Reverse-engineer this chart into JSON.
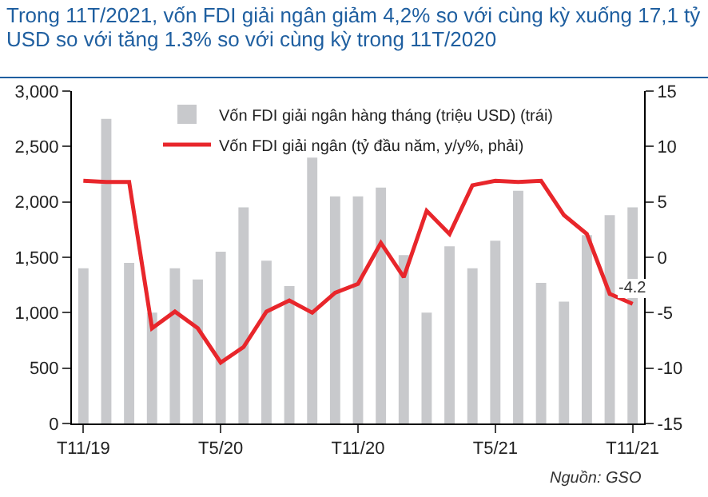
{
  "chart_data": {
    "type": "bar",
    "title": "Trong 11T/2021, vốn FDI giải ngân giảm 4,2% so với cùng kỳ xuống 17,1 tỷ USD so với tăng 1.3% so với cùng kỳ trong 11T/2020",
    "categories": [
      "T11/19",
      null,
      null,
      null,
      null,
      null,
      "T5/20",
      null,
      null,
      null,
      null,
      null,
      "T11/20",
      null,
      null,
      null,
      null,
      null,
      "T5/21",
      null,
      null,
      null,
      null,
      null,
      "T11/21"
    ],
    "series": [
      {
        "name": "Vốn FDI giải ngân hàng tháng (triệu USD) (trái)",
        "color": "#c8c9cc",
        "values": [
          1400,
          2750,
          1450,
          1000,
          1400,
          1300,
          1550,
          1950,
          1470,
          1240,
          2400,
          2050,
          2050,
          2130,
          1520,
          1000,
          1600,
          1400,
          1650,
          2100,
          1270,
          1100,
          1700,
          1880,
          1950
        ]
      },
      {
        "name": "Vốn FDI giải ngân (tỷ đầu năm, y/y%, phải)",
        "type": "line",
        "axis": "y2",
        "color": "#e8262b",
        "values": [
          6.9,
          6.8,
          6.8,
          -6.4,
          -4.9,
          -6.4,
          -9.5,
          -8.1,
          -4.9,
          -3.9,
          -5.0,
          -3.2,
          -2.4,
          1.3,
          -1.8,
          4.2,
          2.1,
          6.5,
          6.9,
          6.8,
          6.9,
          3.8,
          2.1,
          -3.3,
          -4.2
        ]
      }
    ],
    "ylim": [
      0,
      3000
    ],
    "yticks": [
      0,
      500,
      {
        "value": 1000,
        "label": "1,000"
      },
      {
        "value": 1500,
        "label": "1,500"
      },
      {
        "value": 2000,
        "label": "2,000"
      },
      {
        "value": 2500,
        "label": "2,500"
      },
      {
        "value": 3000,
        "label": "3,000"
      }
    ],
    "y2lim": [
      -15,
      15
    ],
    "y2ticks": [
      -15,
      -10,
      -5,
      0,
      5,
      10,
      15
    ],
    "grid": false,
    "legend": "top",
    "marker": "none",
    "line_style": "solid",
    "annotations": [
      {
        "text": "-4.2",
        "x": "T11/21",
        "y": 1080
      },
      "Nguồn: GSO"
    ]
  }
}
